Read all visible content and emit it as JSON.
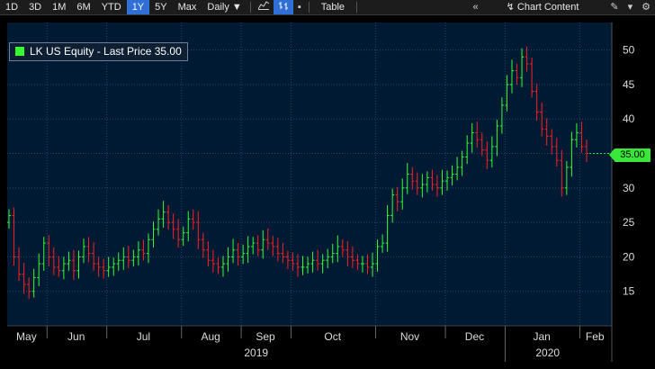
{
  "toolbar": {
    "periods": [
      "1D",
      "3D",
      "1M",
      "6M",
      "YTD",
      "1Y",
      "5Y",
      "Max"
    ],
    "active_period": "1Y",
    "frequency": "Daily",
    "table_label": "Table",
    "chart_content_label": "Chart Content",
    "icons": [
      "line-chart-icon",
      "bar-chart-icon",
      "dot-menu-icon",
      "double-chevron-left-icon",
      "edit-icon",
      "expand-icon",
      "gear-icon"
    ]
  },
  "legend": {
    "label": "LK US Equity - Last Price 35.00",
    "color": "#33ff33"
  },
  "price_tag": {
    "label": "35.00",
    "color": "#39e639"
  },
  "colors": {
    "background": "#001a33",
    "up": "#33ff33",
    "down": "#ff2020",
    "grid": "#22486e"
  },
  "chart_data": {
    "type": "ohlc",
    "title": "LK US Equity - Last Price 35.00",
    "last_price": 35.0,
    "y_axis": {
      "min": 10,
      "max": 54,
      "ticks": [
        15,
        20,
        25,
        30,
        35,
        40,
        45,
        50
      ],
      "side": "right"
    },
    "x_axis": {
      "months": [
        "May",
        "Jun",
        "Jul",
        "Aug",
        "Sep",
        "Oct",
        "Nov",
        "Dec",
        "Jan",
        "Feb"
      ],
      "years": [
        "2019",
        "2020"
      ]
    },
    "grid": true,
    "legend_position": "top-left",
    "series": [
      {
        "date": "2019-05",
        "close": 26.0
      },
      {
        "date": "2019-05",
        "close": 20.0
      },
      {
        "date": "2019-05",
        "close": 17.5
      },
      {
        "date": "2019-05",
        "close": 16.0
      },
      {
        "date": "2019-05",
        "close": 15.0
      },
      {
        "date": "2019-05",
        "close": 17.0
      },
      {
        "date": "2019-05",
        "close": 19.0
      },
      {
        "date": "2019-05",
        "close": 22.0
      },
      {
        "date": "2019-06",
        "close": 20.0
      },
      {
        "date": "2019-06",
        "close": 18.5
      },
      {
        "date": "2019-06",
        "close": 18.0
      },
      {
        "date": "2019-06",
        "close": 19.0
      },
      {
        "date": "2019-06",
        "close": 19.5
      },
      {
        "date": "2019-06",
        "close": 18.0
      },
      {
        "date": "2019-06",
        "close": 20.0
      },
      {
        "date": "2019-06",
        "close": 21.5
      },
      {
        "date": "2019-06",
        "close": 20.5
      },
      {
        "date": "2019-06",
        "close": 19.0
      },
      {
        "date": "2019-06",
        "close": 18.5
      },
      {
        "date": "2019-06",
        "close": 18.0
      },
      {
        "date": "2019-07",
        "close": 18.5
      },
      {
        "date": "2019-07",
        "close": 19.0
      },
      {
        "date": "2019-07",
        "close": 19.5
      },
      {
        "date": "2019-07",
        "close": 20.0
      },
      {
        "date": "2019-07",
        "close": 19.5
      },
      {
        "date": "2019-07",
        "close": 20.0
      },
      {
        "date": "2019-07",
        "close": 21.0
      },
      {
        "date": "2019-07",
        "close": 20.5
      },
      {
        "date": "2019-07",
        "close": 22.5
      },
      {
        "date": "2019-07",
        "close": 24.0
      },
      {
        "date": "2019-07",
        "close": 25.5
      },
      {
        "date": "2019-07",
        "close": 26.5
      },
      {
        "date": "2019-07",
        "close": 25.0
      },
      {
        "date": "2019-07",
        "close": 24.0
      },
      {
        "date": "2019-07",
        "close": 22.5
      },
      {
        "date": "2019-08",
        "close": 23.5
      },
      {
        "date": "2019-08",
        "close": 25.5
      },
      {
        "date": "2019-08",
        "close": 25.0
      },
      {
        "date": "2019-08",
        "close": 22.5
      },
      {
        "date": "2019-08",
        "close": 21.0
      },
      {
        "date": "2019-08",
        "close": 19.5
      },
      {
        "date": "2019-08",
        "close": 19.0
      },
      {
        "date": "2019-08",
        "close": 18.5
      },
      {
        "date": "2019-08",
        "close": 19.0
      },
      {
        "date": "2019-08",
        "close": 20.0
      },
      {
        "date": "2019-08",
        "close": 21.0
      },
      {
        "date": "2019-08",
        "close": 20.0
      },
      {
        "date": "2019-09",
        "close": 20.5
      },
      {
        "date": "2019-09",
        "close": 21.5
      },
      {
        "date": "2019-09",
        "close": 22.0
      },
      {
        "date": "2019-09",
        "close": 21.0
      },
      {
        "date": "2019-09",
        "close": 22.5
      },
      {
        "date": "2019-09",
        "close": 22.0
      },
      {
        "date": "2019-09",
        "close": 21.5
      },
      {
        "date": "2019-09",
        "close": 20.5
      },
      {
        "date": "2019-09",
        "close": 20.0
      },
      {
        "date": "2019-09",
        "close": 19.5
      },
      {
        "date": "2019-10",
        "close": 19.0
      },
      {
        "date": "2019-10",
        "close": 18.5
      },
      {
        "date": "2019-10",
        "close": 18.5
      },
      {
        "date": "2019-10",
        "close": 19.0
      },
      {
        "date": "2019-10",
        "close": 19.5
      },
      {
        "date": "2019-10",
        "close": 19.0
      },
      {
        "date": "2019-10",
        "close": 19.5
      },
      {
        "date": "2019-10",
        "close": 20.0
      },
      {
        "date": "2019-10",
        "close": 20.5
      },
      {
        "date": "2019-10",
        "close": 21.5
      },
      {
        "date": "2019-10",
        "close": 21.0
      },
      {
        "date": "2019-10",
        "close": 20.0
      },
      {
        "date": "2019-10",
        "close": 19.5
      },
      {
        "date": "2019-10",
        "close": 19.0
      },
      {
        "date": "2019-10",
        "close": 19.0
      },
      {
        "date": "2019-10",
        "close": 18.5
      },
      {
        "date": "2019-10",
        "close": 19.0
      },
      {
        "date": "2019-11",
        "close": 21.5
      },
      {
        "date": "2019-11",
        "close": 22.0
      },
      {
        "date": "2019-11",
        "close": 26.0
      },
      {
        "date": "2019-11",
        "close": 29.0
      },
      {
        "date": "2019-11",
        "close": 28.0
      },
      {
        "date": "2019-11",
        "close": 30.0
      },
      {
        "date": "2019-11",
        "close": 32.0
      },
      {
        "date": "2019-11",
        "close": 31.0
      },
      {
        "date": "2019-11",
        "close": 30.0
      },
      {
        "date": "2019-11",
        "close": 30.5
      },
      {
        "date": "2019-11",
        "close": 31.5
      },
      {
        "date": "2019-11",
        "close": 30.5
      },
      {
        "date": "2019-11",
        "close": 30.0
      },
      {
        "date": "2019-11",
        "close": 31.0
      },
      {
        "date": "2019-12",
        "close": 31.5
      },
      {
        "date": "2019-12",
        "close": 32.0
      },
      {
        "date": "2019-12",
        "close": 33.0
      },
      {
        "date": "2019-12",
        "close": 34.5
      },
      {
        "date": "2019-12",
        "close": 36.5
      },
      {
        "date": "2019-12",
        "close": 38.0
      },
      {
        "date": "2019-12",
        "close": 37.0
      },
      {
        "date": "2019-12",
        "close": 35.5
      },
      {
        "date": "2019-12",
        "close": 34.0
      },
      {
        "date": "2019-12",
        "close": 36.0
      },
      {
        "date": "2019-12",
        "close": 39.0
      },
      {
        "date": "2019-12",
        "close": 42.0
      },
      {
        "date": "2020-01",
        "close": 45.0
      },
      {
        "date": "2020-01",
        "close": 47.0
      },
      {
        "date": "2020-01",
        "close": 46.0
      },
      {
        "date": "2020-01",
        "close": 49.0
      },
      {
        "date": "2020-01",
        "close": 48.0
      },
      {
        "date": "2020-01",
        "close": 44.0
      },
      {
        "date": "2020-01",
        "close": 41.0
      },
      {
        "date": "2020-01",
        "close": 38.5
      },
      {
        "date": "2020-01",
        "close": 37.5
      },
      {
        "date": "2020-01",
        "close": 36.0
      },
      {
        "date": "2020-01",
        "close": 34.0
      },
      {
        "date": "2020-01",
        "close": 30.0
      },
      {
        "date": "2020-01",
        "close": 33.0
      },
      {
        "date": "2020-01",
        "close": 37.0
      },
      {
        "date": "2020-01",
        "close": 38.0
      },
      {
        "date": "2020-02",
        "close": 36.0
      },
      {
        "date": "2020-02",
        "close": 35.0
      }
    ]
  }
}
